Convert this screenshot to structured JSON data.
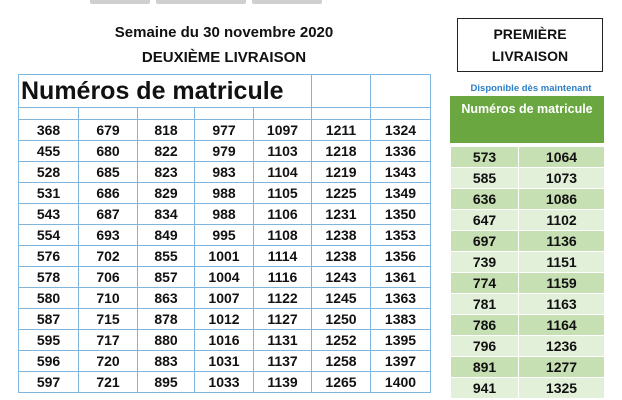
{
  "header": {
    "week": "Semaine du 30 novembre 2020",
    "second_delivery": "DEUXIÈME LIVRAISON",
    "table_title": "Numéros de matricule"
  },
  "first_delivery": {
    "line1": "PREMIÈRE",
    "line2": "LIVRAISON",
    "available": "Disponible dès maintenant",
    "header": "Numéros de matricule"
  },
  "colors": {
    "blue_grid": "#7fb5dd",
    "green_header": "#6aa741",
    "green_band_dark": "#c6dfb3",
    "green_band_light": "#e2efd9",
    "available_text": "#2f7fc7"
  },
  "second_delivery_rows": [
    [
      "368",
      "679",
      "818",
      "977",
      "1097",
      "1211",
      "1324"
    ],
    [
      "455",
      "680",
      "822",
      "979",
      "1103",
      "1218",
      "1336"
    ],
    [
      "528",
      "685",
      "823",
      "983",
      "1104",
      "1219",
      "1343"
    ],
    [
      "531",
      "686",
      "829",
      "988",
      "1105",
      "1225",
      "1349"
    ],
    [
      "543",
      "687",
      "834",
      "988",
      "1106",
      "1231",
      "1350"
    ],
    [
      "554",
      "693",
      "849",
      "995",
      "1108",
      "1238",
      "1353"
    ],
    [
      "576",
      "702",
      "855",
      "1001",
      "1114",
      "1238",
      "1356"
    ],
    [
      "578",
      "706",
      "857",
      "1004",
      "1116",
      "1243",
      "1361"
    ],
    [
      "580",
      "710",
      "863",
      "1007",
      "1122",
      "1245",
      "1363"
    ],
    [
      "587",
      "715",
      "878",
      "1012",
      "1127",
      "1250",
      "1383"
    ],
    [
      "595",
      "717",
      "880",
      "1016",
      "1131",
      "1252",
      "1395"
    ],
    [
      "596",
      "720",
      "883",
      "1031",
      "1137",
      "1258",
      "1397"
    ],
    [
      "597",
      "721",
      "895",
      "1033",
      "1139",
      "1265",
      "1400"
    ]
  ],
  "first_delivery_rows": [
    [
      "573",
      "1064"
    ],
    [
      "585",
      "1073"
    ],
    [
      "636",
      "1086"
    ],
    [
      "647",
      "1102"
    ],
    [
      "697",
      "1136"
    ],
    [
      "739",
      "1151"
    ],
    [
      "774",
      "1159"
    ],
    [
      "781",
      "1163"
    ],
    [
      "786",
      "1164"
    ],
    [
      "796",
      "1236"
    ],
    [
      "891",
      "1277"
    ],
    [
      "941",
      "1325"
    ]
  ]
}
